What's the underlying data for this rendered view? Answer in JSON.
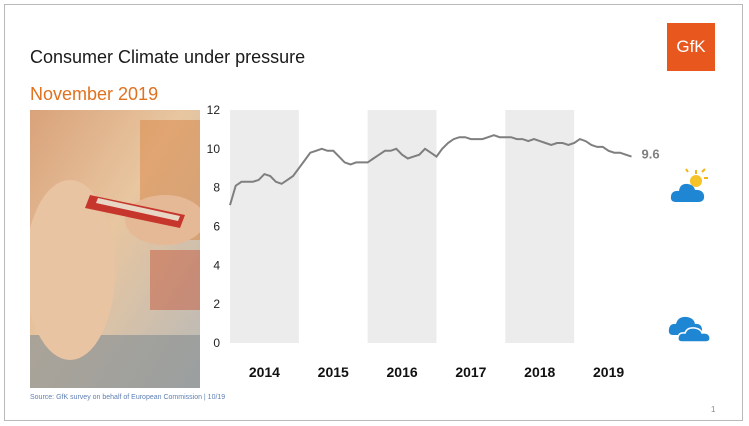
{
  "slide": {
    "title": "Consumer Climate under pressure",
    "subtitle": "November 2019",
    "logo_text": "GfK",
    "source": "Source: GfK survey on behalf of European Commission  | 10/19",
    "page_number": "1"
  },
  "icons": {
    "forecast": "sun-behind-cloud-icon",
    "current": "cloud-icon"
  },
  "colors": {
    "accent": "#e0711f",
    "logo": "#e8571d",
    "line": "#7f7f7f",
    "band": "#ececec",
    "cloud": "#1f86d4"
  },
  "chart_data": {
    "type": "line",
    "title": "",
    "xlabel": "",
    "ylabel": "",
    "ylim": [
      0,
      12
    ],
    "yticks": [
      "0",
      "2",
      "4",
      "6",
      "8",
      "10",
      "12"
    ],
    "year_labels": [
      "2014",
      "2015",
      "2016",
      "2017",
      "2018",
      "2019"
    ],
    "shaded_years": [
      "2014",
      "2016",
      "2018"
    ],
    "end_label": "9.6",
    "series": [
      {
        "x": [
          "2014-01",
          "2014-02",
          "2014-03",
          "2014-04",
          "2014-05",
          "2014-06",
          "2014-07",
          "2014-08",
          "2014-09",
          "2014-10",
          "2014-11",
          "2014-12",
          "2015-01",
          "2015-02",
          "2015-03",
          "2015-04",
          "2015-05",
          "2015-06",
          "2015-07",
          "2015-08",
          "2015-09",
          "2015-10",
          "2015-11",
          "2015-12",
          "2016-01",
          "2016-02",
          "2016-03",
          "2016-04",
          "2016-05",
          "2016-06",
          "2016-07",
          "2016-08",
          "2016-09",
          "2016-10",
          "2016-11",
          "2016-12",
          "2017-01",
          "2017-02",
          "2017-03",
          "2017-04",
          "2017-05",
          "2017-06",
          "2017-07",
          "2017-08",
          "2017-09",
          "2017-10",
          "2017-11",
          "2017-12",
          "2018-01",
          "2018-02",
          "2018-03",
          "2018-04",
          "2018-05",
          "2018-06",
          "2018-07",
          "2018-08",
          "2018-09",
          "2018-10",
          "2018-11",
          "2018-12",
          "2019-01",
          "2019-02",
          "2019-03",
          "2019-04",
          "2019-05",
          "2019-06",
          "2019-07",
          "2019-08",
          "2019-09",
          "2019-10",
          "2019-11"
        ],
        "values": [
          7.1,
          8.1,
          8.3,
          8.3,
          8.3,
          8.4,
          8.7,
          8.6,
          8.3,
          8.2,
          8.4,
          8.6,
          9.0,
          9.4,
          9.8,
          9.9,
          10.0,
          9.9,
          9.9,
          9.6,
          9.3,
          9.2,
          9.3,
          9.3,
          9.3,
          9.5,
          9.7,
          9.9,
          9.9,
          10.0,
          9.7,
          9.5,
          9.6,
          9.7,
          10.0,
          9.8,
          9.6,
          10.0,
          10.3,
          10.5,
          10.6,
          10.6,
          10.5,
          10.5,
          10.5,
          10.6,
          10.7,
          10.6,
          10.6,
          10.6,
          10.5,
          10.5,
          10.4,
          10.5,
          10.4,
          10.3,
          10.2,
          10.3,
          10.3,
          10.2,
          10.3,
          10.5,
          10.4,
          10.2,
          10.1,
          10.1,
          9.9,
          9.8,
          9.8,
          9.7,
          9.6
        ]
      }
    ]
  }
}
